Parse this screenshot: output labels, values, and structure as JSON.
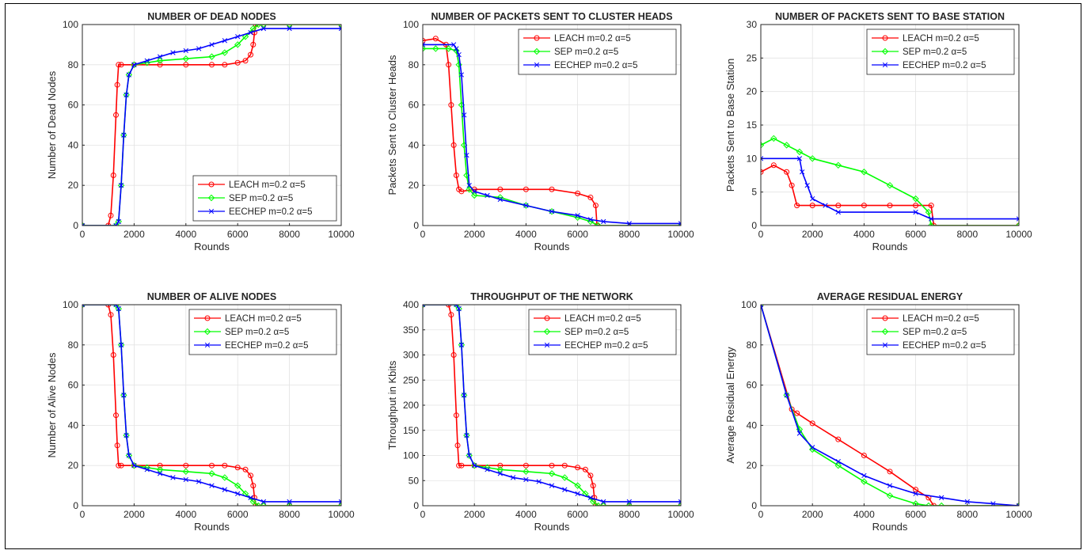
{
  "colors": {
    "leach": "#ff0000",
    "sep": "#00ff00",
    "eechep": "#0000ff"
  },
  "chart_data": [
    {
      "type": "line",
      "title": "NUMBER OF DEAD NODES",
      "xlabel": "Rounds",
      "ylabel": "Number of Dead Nodes",
      "xlim": [
        0,
        10000
      ],
      "ylim": [
        0,
        100
      ],
      "xticks": [
        0,
        2000,
        4000,
        6000,
        8000,
        10000
      ],
      "yticks": [
        0,
        20,
        40,
        60,
        80,
        100
      ],
      "grid": true,
      "legend_position": "bottom-right",
      "series": [
        {
          "name": "LEACH m=0.2 α=5",
          "color": "#ff0000",
          "marker": "circle",
          "x": [
            0,
            1000,
            1100,
            1200,
            1300,
            1350,
            1400,
            1500,
            2000,
            3000,
            4000,
            5000,
            5500,
            6000,
            6300,
            6500,
            6600,
            6650,
            6700,
            7000,
            8000,
            10000
          ],
          "y": [
            0,
            0,
            5,
            25,
            55,
            70,
            80,
            80,
            80,
            80,
            80,
            80,
            80,
            81,
            82,
            85,
            90,
            96,
            100,
            100,
            100,
            100
          ]
        },
        {
          "name": "SEP m=0.2 α=5",
          "color": "#00ff00",
          "marker": "diamond",
          "x": [
            0,
            1300,
            1400,
            1500,
            1600,
            1700,
            1800,
            2000,
            2500,
            3000,
            4000,
            5000,
            5500,
            6000,
            6300,
            6600,
            6800,
            7000,
            8000,
            10000
          ],
          "y": [
            0,
            0,
            2,
            20,
            45,
            65,
            75,
            80,
            81,
            82,
            83,
            84,
            86,
            90,
            94,
            98,
            100,
            100,
            100,
            100
          ]
        },
        {
          "name": "EECHEP m=0.2 α=5",
          "color": "#0000ff",
          "marker": "x",
          "x": [
            0,
            1300,
            1400,
            1500,
            1600,
            1700,
            1800,
            2000,
            2500,
            3000,
            3500,
            4000,
            4500,
            5000,
            5500,
            6000,
            6500,
            7000,
            8000,
            10000
          ],
          "y": [
            0,
            0,
            2,
            20,
            45,
            65,
            75,
            80,
            82,
            84,
            86,
            87,
            88,
            90,
            92,
            94,
            96,
            98,
            98,
            98
          ]
        }
      ]
    },
    {
      "type": "line",
      "title": "NUMBER OF PACKETS SENT TO CLUSTER HEADS",
      "xlabel": "Rounds",
      "ylabel": "Packets Sent to Cluster Heads",
      "xlim": [
        0,
        10000
      ],
      "ylim": [
        0,
        100
      ],
      "xticks": [
        0,
        2000,
        4000,
        6000,
        8000,
        10000
      ],
      "yticks": [
        0,
        20,
        40,
        60,
        80,
        100
      ],
      "grid": true,
      "legend_position": "top-right",
      "series": [
        {
          "name": "LEACH m=0.2 α=5",
          "color": "#ff0000",
          "marker": "circle",
          "x": [
            0,
            500,
            900,
            1000,
            1100,
            1200,
            1300,
            1400,
            1500,
            2000,
            3000,
            4000,
            5000,
            6000,
            6500,
            6700,
            6750,
            10000
          ],
          "y": [
            92,
            93,
            90,
            80,
            60,
            40,
            25,
            18,
            17,
            18,
            18,
            18,
            18,
            16,
            14,
            10,
            0,
            0
          ]
        },
        {
          "name": "SEP m=0.2 α=5",
          "color": "#00ff00",
          "marker": "diamond",
          "x": [
            0,
            500,
            1000,
            1300,
            1400,
            1500,
            1600,
            1700,
            1800,
            2000,
            3000,
            4000,
            5000,
            6000,
            6500,
            6800,
            10000
          ],
          "y": [
            88,
            88,
            88,
            87,
            80,
            60,
            40,
            25,
            18,
            15,
            14,
            10,
            7,
            4,
            2,
            0,
            0
          ]
        },
        {
          "name": "EECHEP m=0.2 α=5",
          "color": "#0000ff",
          "marker": "x",
          "x": [
            0,
            1200,
            1300,
            1400,
            1500,
            1600,
            1700,
            1800,
            2000,
            2500,
            3000,
            4000,
            5000,
            6000,
            6500,
            7000,
            8000,
            10000
          ],
          "y": [
            90,
            90,
            88,
            85,
            75,
            55,
            35,
            20,
            17,
            15,
            13,
            10,
            7,
            5,
            3,
            2,
            1,
            1
          ]
        }
      ]
    },
    {
      "type": "line",
      "title": "NUMBER OF PACKETS SENT TO BASE STATION",
      "xlabel": "Rounds",
      "ylabel": "Packets Sent to Base Station",
      "xlim": [
        0,
        10000
      ],
      "ylim": [
        0,
        30
      ],
      "xticks": [
        0,
        2000,
        4000,
        6000,
        8000,
        10000
      ],
      "yticks": [
        0,
        5,
        10,
        15,
        20,
        25,
        30
      ],
      "grid": true,
      "legend_position": "top-right",
      "series": [
        {
          "name": "LEACH m=0.2 α=5",
          "color": "#ff0000",
          "marker": "circle",
          "x": [
            0,
            500,
            1000,
            1200,
            1400,
            2000,
            3000,
            4000,
            5000,
            6000,
            6600,
            6700,
            10000
          ],
          "y": [
            8,
            9,
            8,
            6,
            3,
            3,
            3,
            3,
            3,
            3,
            3,
            0,
            0
          ]
        },
        {
          "name": "SEP m=0.2 α=5",
          "color": "#00ff00",
          "marker": "diamond",
          "x": [
            0,
            500,
            1000,
            1500,
            2000,
            3000,
            4000,
            5000,
            6000,
            6500,
            6600,
            10000
          ],
          "y": [
            12,
            13,
            12,
            11,
            10,
            9,
            8,
            6,
            4,
            2,
            0,
            0
          ]
        },
        {
          "name": "EECHEP m=0.2 α=5",
          "color": "#0000ff",
          "marker": "x",
          "x": [
            0,
            1500,
            1600,
            1800,
            2000,
            2500,
            3000,
            6000,
            6600,
            10000
          ],
          "y": [
            10,
            10,
            8,
            6,
            4,
            3,
            2,
            2,
            1,
            1
          ]
        }
      ]
    },
    {
      "type": "line",
      "title": "NUMBER OF ALIVE NODES",
      "xlabel": "Rounds",
      "ylabel": "Number of Alive Nodes",
      "xlim": [
        0,
        10000
      ],
      "ylim": [
        0,
        100
      ],
      "xticks": [
        0,
        2000,
        4000,
        6000,
        8000,
        10000
      ],
      "yticks": [
        0,
        20,
        40,
        60,
        80,
        100
      ],
      "grid": true,
      "legend_position": "top-right",
      "series": [
        {
          "name": "LEACH m=0.2 α=5",
          "color": "#ff0000",
          "marker": "circle",
          "x": [
            0,
            1000,
            1100,
            1200,
            1300,
            1350,
            1400,
            1500,
            2000,
            3000,
            4000,
            5000,
            5500,
            6000,
            6300,
            6500,
            6600,
            6650,
            6700,
            7000,
            8000,
            10000
          ],
          "y": [
            100,
            100,
            95,
            75,
            45,
            30,
            20,
            20,
            20,
            20,
            20,
            20,
            20,
            19,
            18,
            15,
            10,
            4,
            0,
            0,
            0,
            0
          ]
        },
        {
          "name": "SEP m=0.2 α=5",
          "color": "#00ff00",
          "marker": "diamond",
          "x": [
            0,
            1300,
            1400,
            1500,
            1600,
            1700,
            1800,
            2000,
            2500,
            3000,
            4000,
            5000,
            5500,
            6000,
            6300,
            6600,
            6800,
            7000,
            8000,
            10000
          ],
          "y": [
            100,
            100,
            98,
            80,
            55,
            35,
            25,
            20,
            19,
            18,
            17,
            16,
            14,
            10,
            6,
            2,
            0,
            0,
            0,
            0
          ]
        },
        {
          "name": "EECHEP m=0.2 α=5",
          "color": "#0000ff",
          "marker": "x",
          "x": [
            0,
            1300,
            1400,
            1500,
            1600,
            1700,
            1800,
            2000,
            2500,
            3000,
            3500,
            4000,
            4500,
            5000,
            5500,
            6000,
            6500,
            7000,
            8000,
            10000
          ],
          "y": [
            100,
            100,
            98,
            80,
            55,
            35,
            25,
            20,
            18,
            16,
            14,
            13,
            12,
            10,
            8,
            6,
            4,
            2,
            2,
            2
          ]
        }
      ]
    },
    {
      "type": "line",
      "title": "THROUGHPUT OF THE NETWORK",
      "xlabel": "Rounds",
      "ylabel": "Throughput in Kbits",
      "xlim": [
        0,
        10000
      ],
      "ylim": [
        0,
        400
      ],
      "xticks": [
        0,
        2000,
        4000,
        6000,
        8000,
        10000
      ],
      "yticks": [
        0,
        50,
        100,
        150,
        200,
        250,
        300,
        350,
        400
      ],
      "grid": true,
      "legend_position": "top-right",
      "series": [
        {
          "name": "LEACH m=0.2 α=5",
          "color": "#ff0000",
          "marker": "circle",
          "x": [
            0,
            1000,
            1100,
            1200,
            1300,
            1350,
            1400,
            1500,
            2000,
            3000,
            4000,
            5000,
            5500,
            6000,
            6300,
            6500,
            6600,
            6650,
            6700,
            7000,
            8000,
            10000
          ],
          "y": [
            400,
            400,
            380,
            300,
            180,
            120,
            80,
            80,
            80,
            80,
            80,
            80,
            80,
            76,
            72,
            60,
            40,
            16,
            0,
            0,
            0,
            0
          ]
        },
        {
          "name": "SEP m=0.2 α=5",
          "color": "#00ff00",
          "marker": "diamond",
          "x": [
            0,
            1300,
            1400,
            1500,
            1600,
            1700,
            1800,
            2000,
            2500,
            3000,
            4000,
            5000,
            5500,
            6000,
            6300,
            6600,
            6800,
            7000,
            8000,
            10000
          ],
          "y": [
            400,
            400,
            392,
            320,
            220,
            140,
            100,
            80,
            76,
            72,
            68,
            64,
            56,
            40,
            24,
            8,
            0,
            0,
            0,
            0
          ]
        },
        {
          "name": "EECHEP m=0.2 α=5",
          "color": "#0000ff",
          "marker": "x",
          "x": [
            0,
            1300,
            1400,
            1500,
            1600,
            1700,
            1800,
            2000,
            2500,
            3000,
            3500,
            4000,
            4500,
            5000,
            5500,
            6000,
            6500,
            7000,
            8000,
            10000
          ],
          "y": [
            400,
            400,
            392,
            320,
            220,
            140,
            100,
            80,
            72,
            64,
            56,
            52,
            48,
            40,
            32,
            24,
            16,
            8,
            8,
            8
          ]
        }
      ]
    },
    {
      "type": "line",
      "title": "AVERAGE RESIDUAL ENERGY",
      "xlabel": "Rounds",
      "ylabel": "Average Residual Energy",
      "xlim": [
        0,
        10000
      ],
      "ylim": [
        0,
        100
      ],
      "xticks": [
        0,
        2000,
        4000,
        6000,
        8000,
        10000
      ],
      "yticks": [
        0,
        20,
        40,
        60,
        80,
        100
      ],
      "grid": true,
      "legend_position": "top-right",
      "series": [
        {
          "name": "LEACH m=0.2 α=5",
          "color": "#ff0000",
          "marker": "circle",
          "x": [
            0,
            1200,
            1400,
            2000,
            3000,
            4000,
            5000,
            6000,
            6500,
            6700,
            10000
          ],
          "y": [
            100,
            48,
            46,
            41,
            33,
            25,
            17,
            8,
            4,
            0,
            0
          ]
        },
        {
          "name": "SEP m=0.2 α=5",
          "color": "#00ff00",
          "marker": "diamond",
          "x": [
            0,
            1000,
            1500,
            2000,
            3000,
            4000,
            5000,
            6000,
            6500,
            7000,
            10000
          ],
          "y": [
            100,
            55,
            38,
            28,
            20,
            12,
            5,
            1,
            0,
            0,
            0
          ]
        },
        {
          "name": "EECHEP m=0.2 α=5",
          "color": "#0000ff",
          "marker": "x",
          "x": [
            0,
            1000,
            1500,
            2000,
            3000,
            4000,
            5000,
            6000,
            7000,
            8000,
            9000,
            10000
          ],
          "y": [
            100,
            55,
            36,
            29,
            22,
            15,
            10,
            6,
            4,
            2,
            1,
            0
          ]
        }
      ]
    }
  ]
}
